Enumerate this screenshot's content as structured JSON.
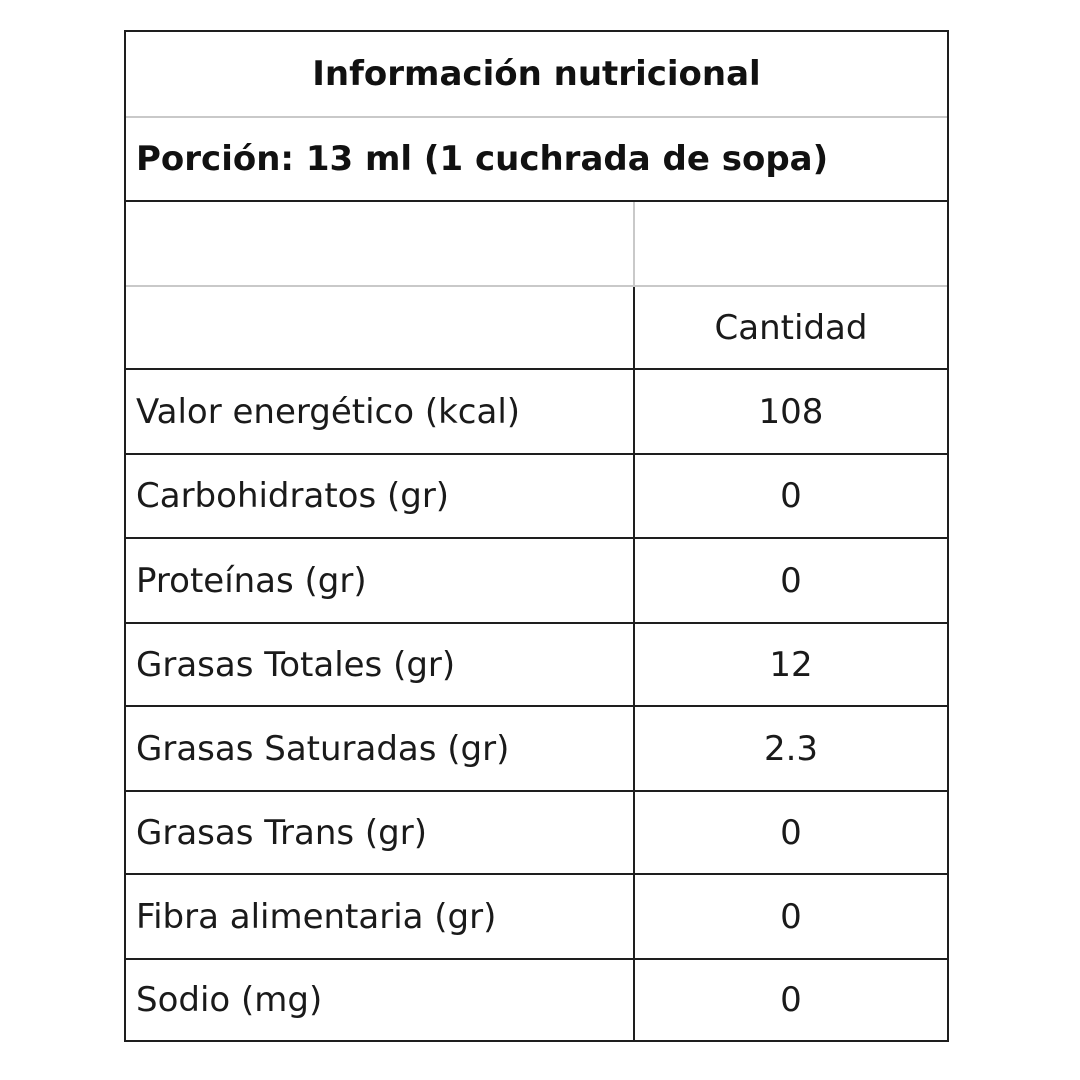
{
  "table": {
    "title": "Información nutricional",
    "portion": "Porción: 13 ml (1 cuchrada de sopa)",
    "blank_row": {
      "label": "",
      "value": ""
    },
    "header": {
      "label": "",
      "value": "Cantidad"
    },
    "rows": [
      {
        "label": "Valor energético (kcal)",
        "value": "108"
      },
      {
        "label": "Carbohidratos (gr)",
        "value": "0"
      },
      {
        "label": "Proteínas (gr)",
        "value": "0"
      },
      {
        "label": "Grasas Totales (gr)",
        "value": "12"
      },
      {
        "label": "Grasas Saturadas (gr)",
        "value": "2.3"
      },
      {
        "label": "Grasas Trans (gr)",
        "value": "0"
      },
      {
        "label": "Fibra alimentaria (gr)",
        "value": "0"
      },
      {
        "label": "Sodio (mg)",
        "value": "0"
      }
    ]
  }
}
